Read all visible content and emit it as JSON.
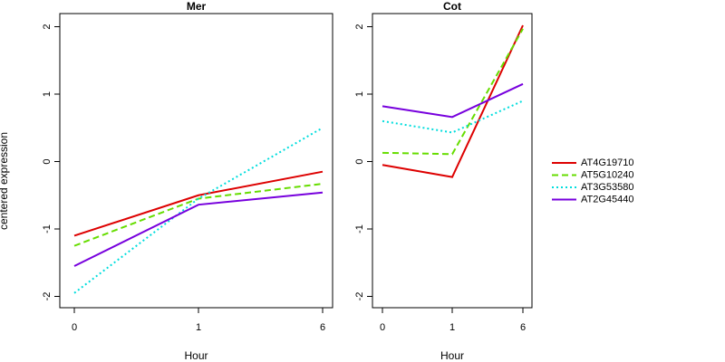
{
  "chart_data": {
    "type": "line",
    "ylabel": "centered expression",
    "ylim": [
      -2,
      2
    ],
    "yticks": [
      -2,
      -1,
      0,
      1,
      2
    ],
    "legend_placement": "right",
    "grid": false,
    "panels": [
      {
        "title": "Mer",
        "xlabel": "Hour",
        "categories": [
          "0",
          "1",
          "6"
        ]
      },
      {
        "title": "Cot",
        "xlabel": "Hour",
        "categories": [
          "0",
          "1",
          "6"
        ]
      }
    ],
    "series": [
      {
        "name": "AT4G19710",
        "color": "#dd0000",
        "dash": "solid",
        "mer": [
          -1.1,
          -0.5,
          -0.15
        ],
        "cot": [
          -0.05,
          -0.23,
          2.02
        ]
      },
      {
        "name": "AT5G10240",
        "color": "#66dd00",
        "dash": "dashed",
        "mer": [
          -1.25,
          -0.55,
          -0.33
        ],
        "cot": [
          0.13,
          0.11,
          1.97
        ]
      },
      {
        "name": "AT3G53580",
        "color": "#00dddd",
        "dash": "dotted",
        "mer": [
          -1.95,
          -0.55,
          0.5
        ],
        "cot": [
          0.6,
          0.43,
          0.9
        ]
      },
      {
        "name": "AT2G45440",
        "color": "#7700dd",
        "dash": "solid",
        "mer": [
          -1.55,
          -0.64,
          -0.46
        ],
        "cot": [
          0.82,
          0.66,
          1.15
        ]
      }
    ]
  }
}
